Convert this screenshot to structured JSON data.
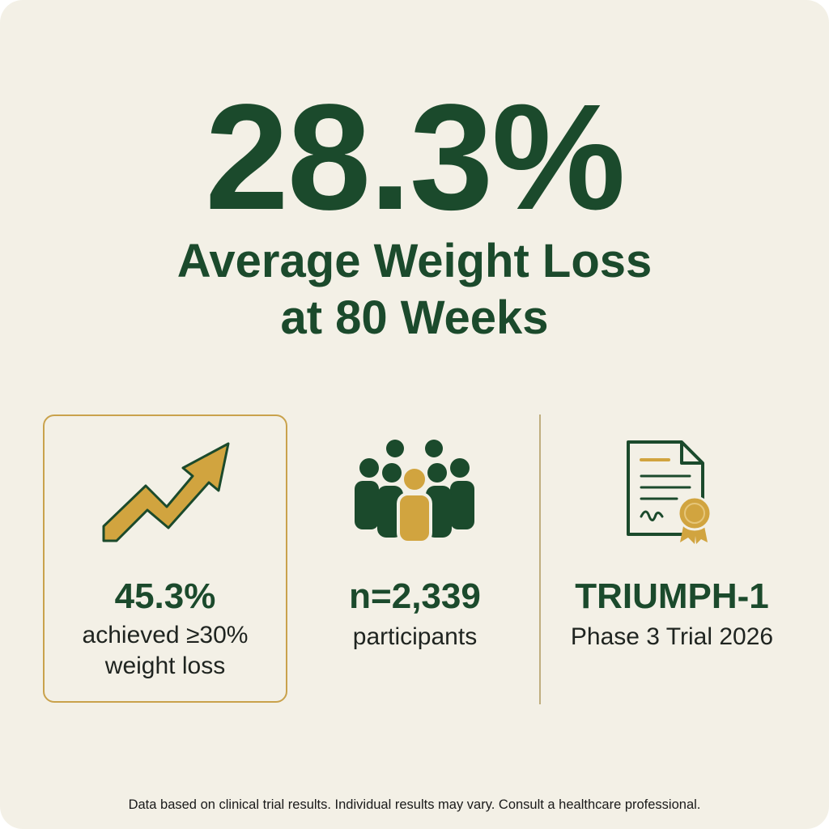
{
  "headline": {
    "value": "28.3%",
    "label_line1": "Average Weight Loss",
    "label_line2": "at 80 Weeks"
  },
  "stats": [
    {
      "icon": "trending-up-arrow-icon",
      "value": "45.3%",
      "label_line1": "achieved ≥30%",
      "label_line2": "weight loss"
    },
    {
      "icon": "people-group-icon",
      "value": "n=2,339",
      "label_line1": "participants"
    },
    {
      "icon": "certificate-document-icon",
      "value": "TRIUMPH-1",
      "label_line1": "Phase 3 Trial 2026"
    }
  ],
  "footnote": "Data based on clinical trial results. Individual results may vary. Consult a healthcare professional.",
  "colors": {
    "background": "#f3f0e6",
    "primary_green": "#1b4a2c",
    "accent_gold": "#d1a43f",
    "border_gold": "#c9a24c"
  }
}
